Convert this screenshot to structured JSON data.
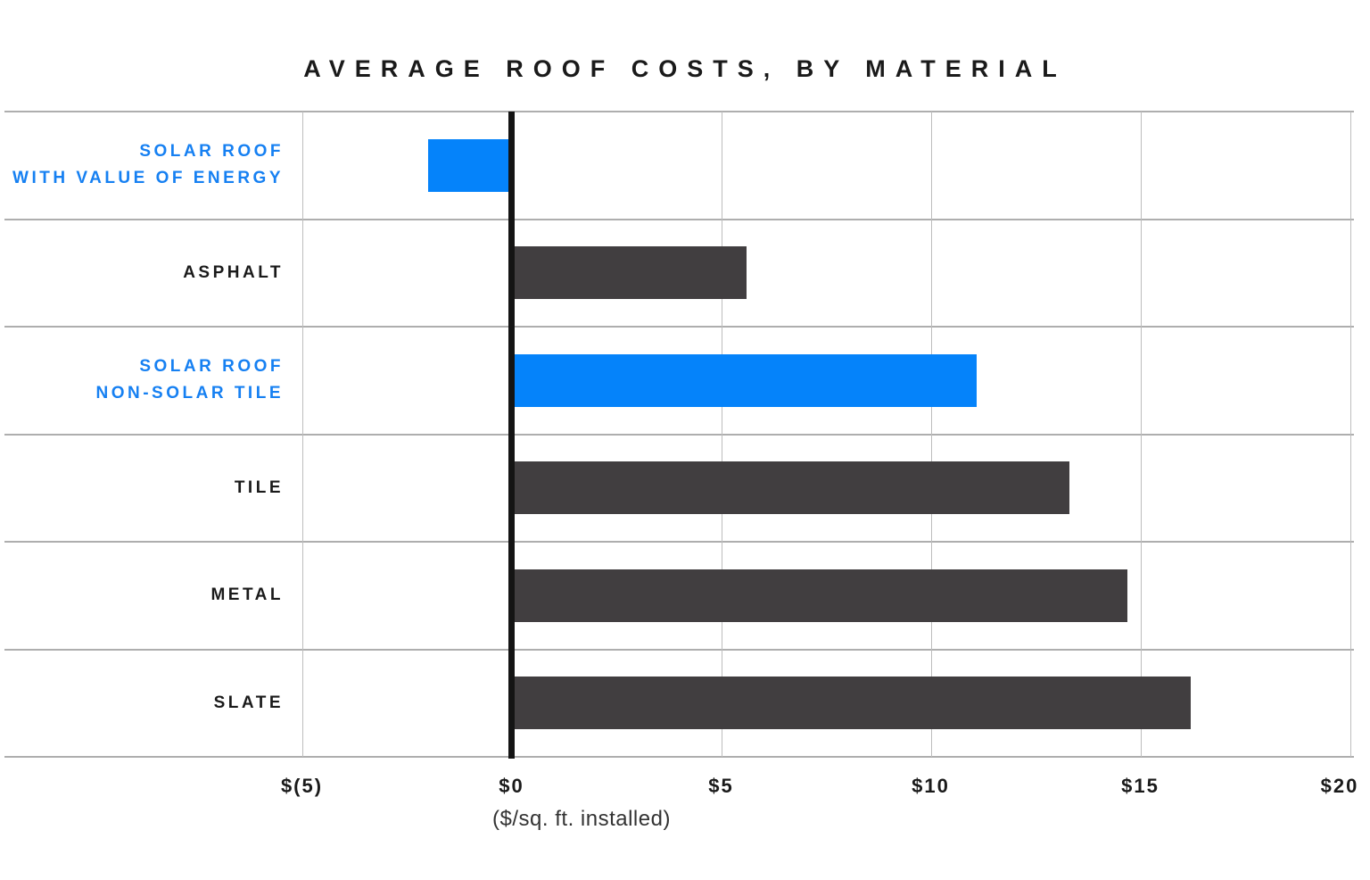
{
  "chart_data": {
    "type": "bar",
    "orientation": "horizontal",
    "title": "AVERAGE ROOF COSTS, BY MATERIAL",
    "xlabel": "($/sq. ft. installed)",
    "xlim": [
      -5,
      20
    ],
    "grid": true,
    "categories": [
      {
        "id": "solar-roof-with-value-of-energy",
        "label_lines": [
          "SOLAR ROOF",
          "WITH VALUE OF ENERGY"
        ],
        "value": -2.0,
        "highlight": true
      },
      {
        "id": "asphalt",
        "label_lines": [
          "ASPHALT"
        ],
        "value": 5.6,
        "highlight": false
      },
      {
        "id": "solar-roof-non-solar-tile",
        "label_lines": [
          "SOLAR ROOF",
          "NON-SOLAR TILE"
        ],
        "value": 11.1,
        "highlight": true
      },
      {
        "id": "tile",
        "label_lines": [
          "TILE"
        ],
        "value": 13.3,
        "highlight": false
      },
      {
        "id": "metal",
        "label_lines": [
          "METAL"
        ],
        "value": 14.7,
        "highlight": false
      },
      {
        "id": "slate",
        "label_lines": [
          "SLATE"
        ],
        "value": 16.2,
        "highlight": false
      }
    ],
    "x_ticks": [
      {
        "value": -5,
        "label": "$(5)"
      },
      {
        "value": 0,
        "label": "$0"
      },
      {
        "value": 5,
        "label": "$5"
      },
      {
        "value": 10,
        "label": "$10"
      },
      {
        "value": 15,
        "label": "$15"
      },
      {
        "value": 20,
        "label": "$20"
      }
    ],
    "colors": {
      "bar_blue": "#0583fa",
      "label_blue": "#1680f2",
      "bar_dark": "#413e40",
      "text_dark": "#1a1a1a",
      "grid_horizontal": "#aeaeae",
      "grid_vertical": "#bdbdbd",
      "zero_axis": "#141414"
    }
  }
}
